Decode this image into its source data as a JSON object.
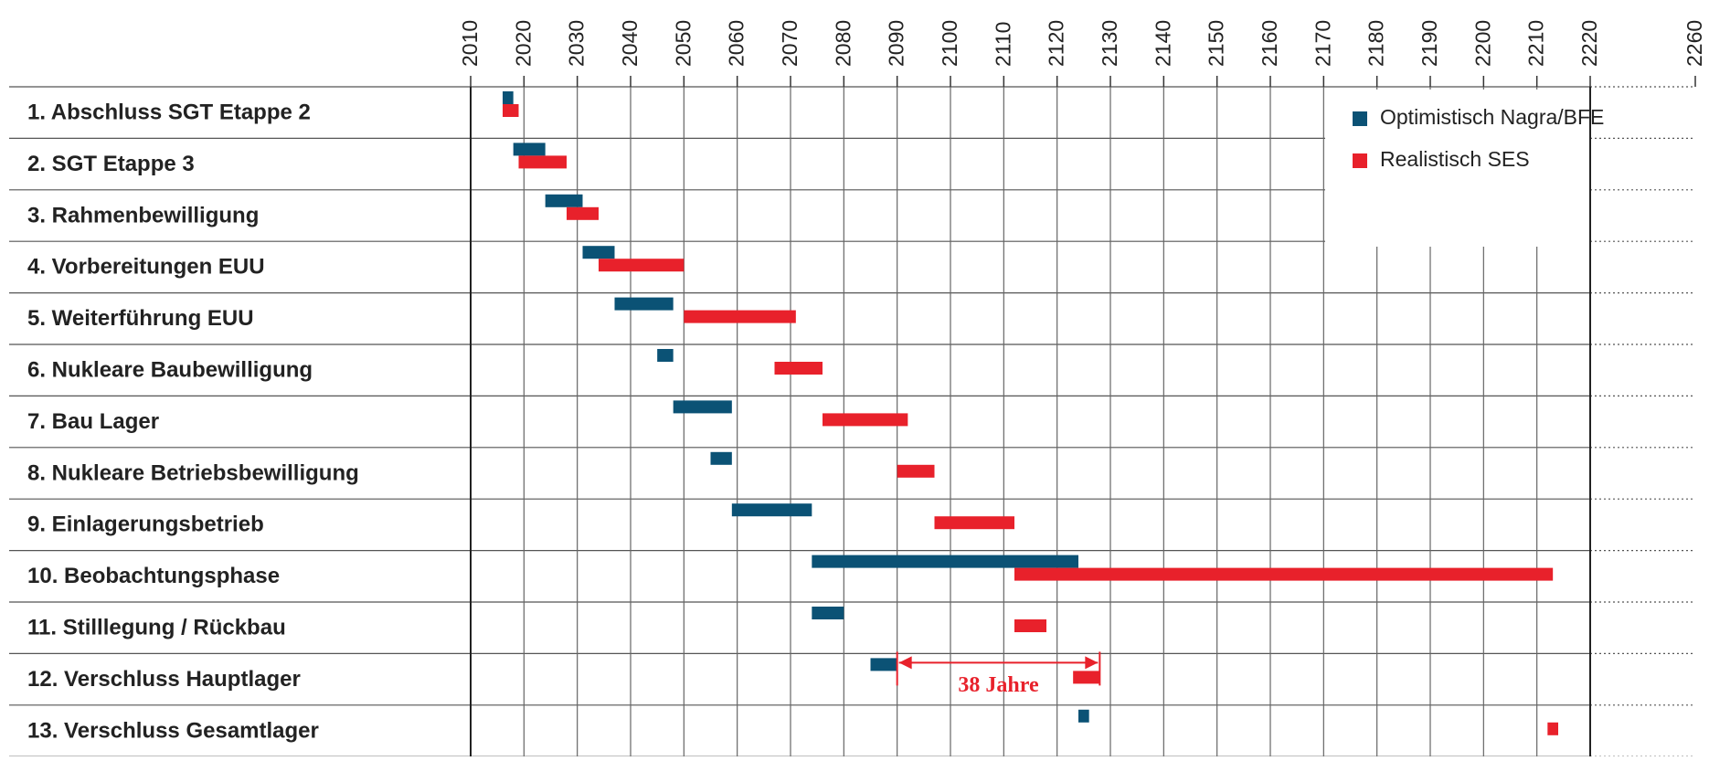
{
  "chart_data": {
    "type": "gantt",
    "categories": [
      "1.  Abschluss SGT Etappe 2",
      "2.  SGT Etappe 3",
      "3.  Rahmenbewilligung",
      "4.  Vorbereitungen EUU",
      "5.  Weiterführung EUU",
      "6.  Nukleare Baubewilligung",
      "7.  Bau Lager",
      "8.  Nukleare Betriebsbewilligung",
      "9.  Einlagerungsbetrieb",
      "10.  Beobachtungsphase",
      "11.  Stilllegung / Rückbau",
      "12.  Verschluss Hauptlager",
      "13.  Verschluss Gesamtlager"
    ],
    "series": [
      {
        "name": "Optimistisch Nagra/BFE",
        "color": "#0b5275",
        "values": [
          [
            2016,
            2018
          ],
          [
            2018,
            2024
          ],
          [
            2024,
            2031
          ],
          [
            2031,
            2037
          ],
          [
            2037,
            2048
          ],
          [
            2045,
            2048
          ],
          [
            2048,
            2059
          ],
          [
            2055,
            2059
          ],
          [
            2059,
            2074
          ],
          [
            2074,
            2124
          ],
          [
            2074,
            2080
          ],
          [
            2085,
            2090
          ],
          [
            2124,
            2126
          ]
        ]
      },
      {
        "name": "Realistisch SES",
        "color": "#e8212b",
        "values": [
          [
            2016,
            2019
          ],
          [
            2019,
            2028
          ],
          [
            2028,
            2034
          ],
          [
            2034,
            2050
          ],
          [
            2050,
            2071
          ],
          [
            2067,
            2076
          ],
          [
            2076,
            2092
          ],
          [
            2090,
            2097
          ],
          [
            2097,
            2112
          ],
          [
            2112,
            2213
          ],
          [
            2112,
            2118
          ],
          [
            2123,
            2128
          ],
          [
            2212,
            2214
          ]
        ]
      }
    ],
    "xlim": [
      2010,
      2260
    ],
    "axis_break": [
      2220,
      2260
    ],
    "xticks": [
      2010,
      2020,
      2030,
      2040,
      2050,
      2060,
      2070,
      2080,
      2090,
      2100,
      2110,
      2120,
      2130,
      2140,
      2150,
      2160,
      2170,
      2180,
      2190,
      2200,
      2210,
      2220,
      2260
    ],
    "grid": true,
    "legend": "upper right",
    "annotation": {
      "text": "38 Jahre",
      "x": [
        2090,
        2128
      ],
      "color": "#e8212b"
    }
  }
}
